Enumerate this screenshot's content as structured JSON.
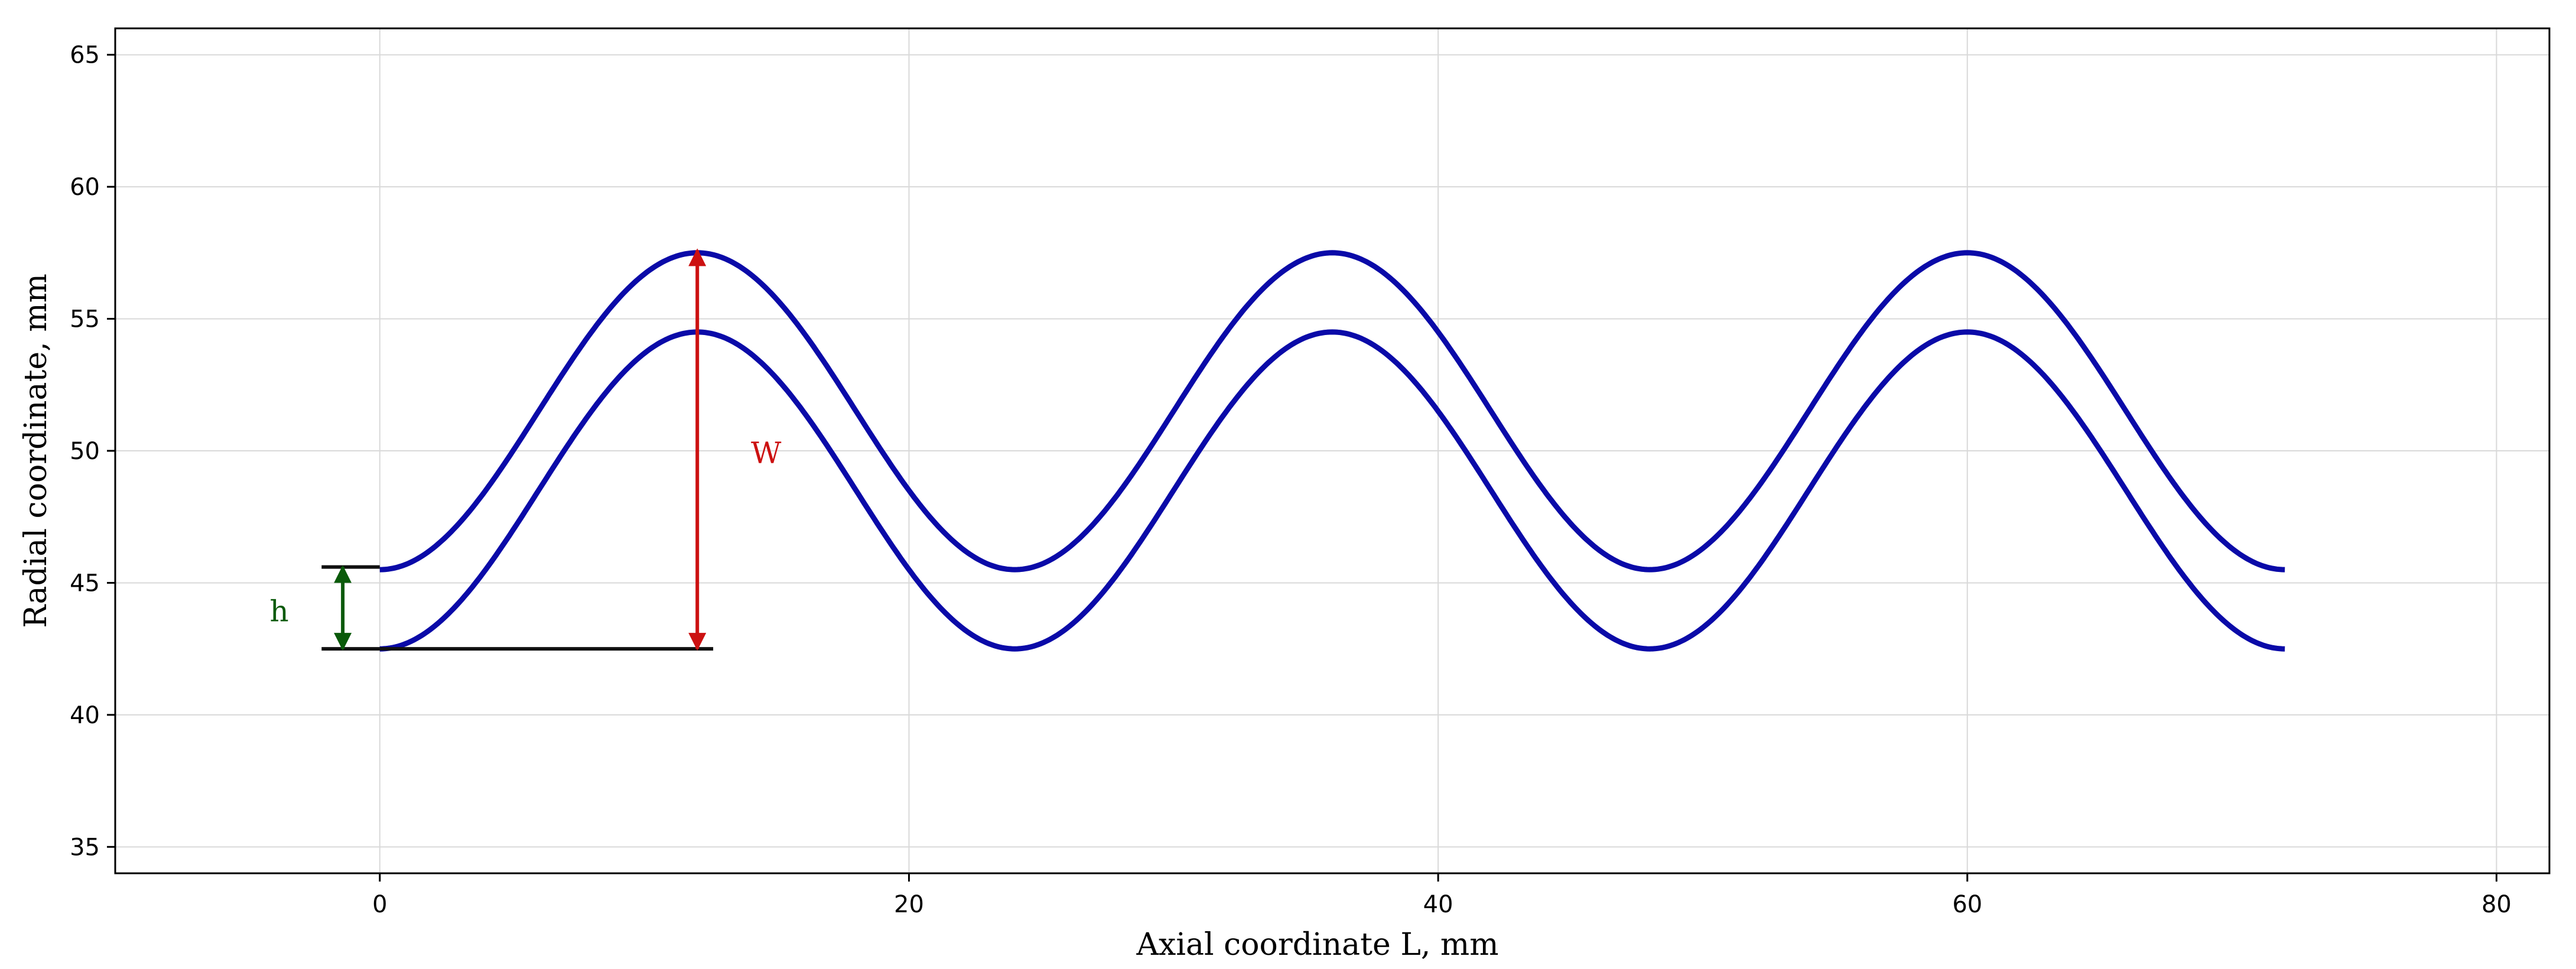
{
  "chart_data": {
    "type": "line",
    "title": "",
    "xlabel": "Axial coordinate L, mm",
    "ylabel": "Radial coordinate, mm",
    "xlim": [
      -10,
      82
    ],
    "ylim": [
      34,
      66
    ],
    "xticks": [
      0,
      20,
      40,
      60,
      80
    ],
    "yticks": [
      35,
      40,
      45,
      50,
      55,
      60,
      65
    ],
    "grid": true,
    "legend": "none",
    "series": [
      {
        "color": "#0a0aa8",
        "x": [
          0,
          3,
          6,
          9,
          12,
          15,
          18,
          21,
          24,
          27,
          30,
          33,
          36,
          39,
          42,
          45,
          48,
          51,
          54,
          57,
          60,
          63,
          66,
          69,
          72
        ],
        "y": [
          45.5,
          46.82,
          50.0,
          54.18,
          57.5,
          56.18,
          53.0,
          48.82,
          45.5,
          46.82,
          50.0,
          54.18,
          57.5,
          56.18,
          53.0,
          48.82,
          45.5,
          46.82,
          50.0,
          54.18,
          57.5,
          56.18,
          53.0,
          48.82,
          45.5
        ]
      },
      {
        "color": "#0a0aa8",
        "x": [
          0,
          3,
          6,
          9,
          12,
          15,
          18,
          21,
          24,
          27,
          30,
          33,
          36,
          39,
          42,
          45,
          48,
          51,
          54,
          57,
          60,
          63,
          66,
          69,
          72
        ],
        "y": [
          42.5,
          43.82,
          47.0,
          51.18,
          54.5,
          53.18,
          50.0,
          45.82,
          42.5,
          43.82,
          47.0,
          51.18,
          54.5,
          53.18,
          50.0,
          45.82,
          42.5,
          43.82,
          47.0,
          51.18,
          54.5,
          53.18,
          50.0,
          45.82,
          42.5
        ]
      }
    ],
    "annotations": [
      {
        "label": "h",
        "color": "#0a5a0a",
        "arrow": {
          "x": -1.4,
          "y_from": 42.5,
          "y_to": 45.6
        },
        "text_pos": {
          "x": -3.8,
          "y": 43.9
        },
        "reference_lines": [
          {
            "x_from": -2.2,
            "x_to": 0,
            "y": 45.6
          },
          {
            "x_from": -2.2,
            "x_to": 12.6,
            "y": 42.5
          }
        ]
      },
      {
        "label": "W",
        "color": "#cc1111",
        "arrow": {
          "x": 12.0,
          "y_from": 42.5,
          "y_to": 57.6
        },
        "text_pos": {
          "x": 14.6,
          "y": 49.9
        }
      }
    ]
  }
}
